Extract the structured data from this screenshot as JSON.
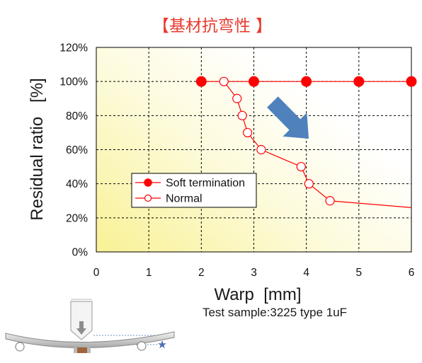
{
  "chart_data": {
    "type": "line",
    "title": "【基材抗弯性 】",
    "xlabel": "Warp  [mm]",
    "ylabel": "Residual ratio   [%]",
    "note": "Test sample:3225 type 1uF",
    "xlim": [
      0,
      6
    ],
    "ylim": [
      0,
      120
    ],
    "x_ticks": [
      0,
      1,
      2,
      3,
      4,
      5,
      6
    ],
    "x_tick_labels": [
      "0",
      "1",
      "2",
      "3",
      "4",
      "5",
      "6"
    ],
    "y_ticks": [
      0,
      20,
      40,
      60,
      80,
      100,
      120
    ],
    "y_tick_labels": [
      "0%",
      "20%",
      "40%",
      "60%",
      "80%",
      "100%",
      "120%"
    ],
    "grid": true,
    "legend_placement": "inside-lower-left",
    "series": [
      {
        "name": "Soft termination",
        "marker": "filled-circle",
        "color": "#ff0000",
        "points": [
          {
            "x": 2,
            "y": 100
          },
          {
            "x": 3,
            "y": 100
          },
          {
            "x": 4,
            "y": 100
          },
          {
            "x": 5,
            "y": 100
          },
          {
            "x": 6,
            "y": 100
          }
        ]
      },
      {
        "name": "Normal",
        "marker": "open-circle",
        "color": "#ff0000",
        "points": [
          {
            "x": 2.43,
            "y": 100
          },
          {
            "x": 2.68,
            "y": 90
          },
          {
            "x": 2.78,
            "y": 80
          },
          {
            "x": 2.88,
            "y": 70
          },
          {
            "x": 3.14,
            "y": 60
          },
          {
            "x": 3.9,
            "y": 50
          },
          {
            "x": 4.05,
            "y": 40
          },
          {
            "x": 4.45,
            "y": 30
          },
          {
            "x": 6,
            "y": 26,
            "marker": false
          }
        ]
      }
    ]
  },
  "colors": {
    "title": "#e8392e",
    "trend_arrow": "#4f81bd",
    "plot_bg_start": "#f8f195",
    "plot_bg_mid": "#fdfbdc",
    "plot_bg_end": "#ffffff",
    "grid": "#000000"
  },
  "icons": {
    "trend_arrow": "down-right-arrow-icon",
    "diagram": "board-bending-test-diagram-icon",
    "press": "press-tool-icon",
    "star": "star-icon"
  }
}
